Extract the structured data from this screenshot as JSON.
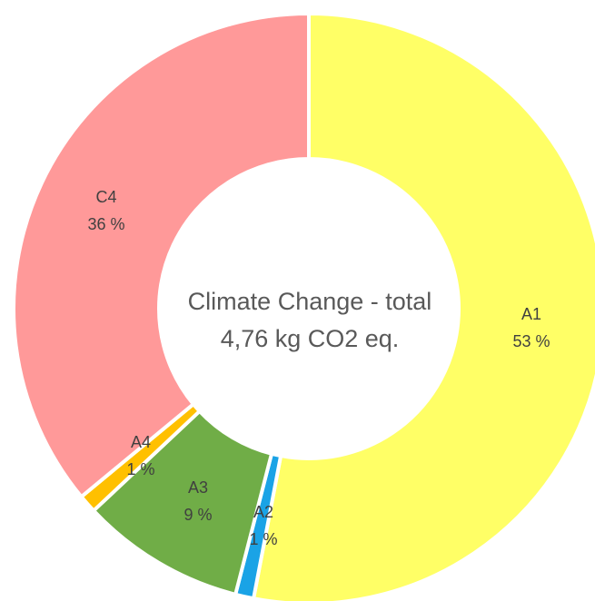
{
  "chart_data": {
    "type": "pie",
    "variant": "donut",
    "center_title": "Climate Change - total",
    "center_value": "4,76 kg CO2 eq.",
    "slices": [
      {
        "name": "A1",
        "value": 53,
        "label": "53 %",
        "color": "#FFFF66"
      },
      {
        "name": "A2",
        "value": 1,
        "label": "1 %",
        "color": "#1AA3E6"
      },
      {
        "name": "A3",
        "value": 9,
        "label": "9 %",
        "color": "#70AD47"
      },
      {
        "name": "A4",
        "value": 1,
        "label": "1 %",
        "color": "#FFC000"
      },
      {
        "name": "C4",
        "value": 36,
        "label": "36 %",
        "color": "#FF9999"
      }
    ],
    "legend": "none"
  }
}
